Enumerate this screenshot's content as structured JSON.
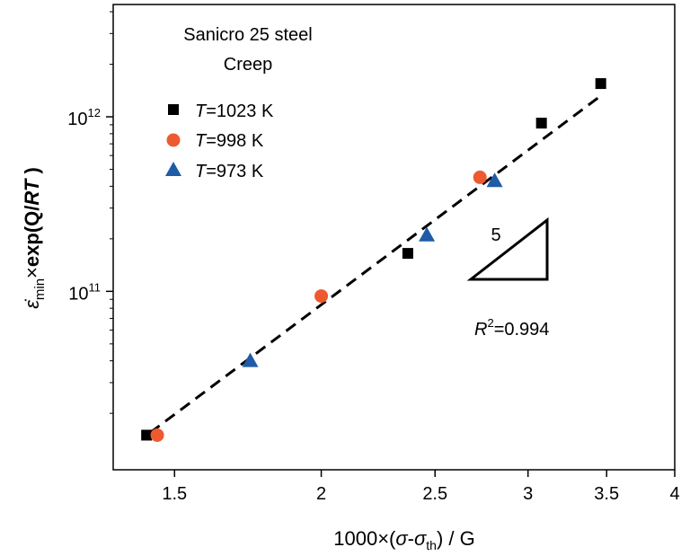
{
  "chart_data": {
    "type": "scatter",
    "title_lines": [
      "Sanicro 25 steel",
      "Creep"
    ],
    "x_scale": "log",
    "y_scale": "log",
    "xlim": [
      1.33,
      4.0
    ],
    "ylim": [
      9500000000.0,
      4400000000000.0
    ],
    "grid": false,
    "legend_position": "top-left",
    "xlabel": {
      "prefix": "1000×(",
      "sigma": "σ",
      "dash": "-",
      "sigma2": "σ",
      "sub": "th",
      "suffix": ") / G"
    },
    "ylabel": {
      "sub": "min",
      "times": "×",
      "exp": "exp(Q/",
      "rt": "RT",
      "close": " )"
    },
    "x_ticks": [
      {
        "value": 1.5,
        "label": "1.5"
      },
      {
        "value": 2.0,
        "label": "2"
      },
      {
        "value": 2.5,
        "label": "2.5"
      },
      {
        "value": 3.0,
        "label": "3"
      },
      {
        "value": 3.5,
        "label": "3.5"
      },
      {
        "value": 4.0,
        "label": "4"
      }
    ],
    "y_ticks": [
      {
        "value": 100000000000.0,
        "base": "10",
        "exp": "11"
      },
      {
        "value": 1000000000000.0,
        "base": "10",
        "exp": "12"
      }
    ],
    "series": [
      {
        "name": "=1023 K",
        "name_italic": "T",
        "marker": "square",
        "color": "#000000",
        "x": [
          1.42,
          2.37,
          3.08,
          3.46
        ],
        "y": [
          15000000000.0,
          165000000000.0,
          920000000000.0,
          1550000000000.0
        ]
      },
      {
        "name": "=998 K",
        "name_italic": "T",
        "marker": "circle",
        "color": "#EE5A2F",
        "x": [
          1.45,
          2.0,
          2.73
        ],
        "y": [
          15000000000.0,
          94000000000.0,
          450000000000.0
        ]
      },
      {
        "name": "=973 K",
        "name_italic": "T",
        "marker": "triangle",
        "color": "#1F5BA6",
        "x": [
          1.74,
          2.46,
          2.81
        ],
        "y": [
          40000000000.0,
          210000000000.0,
          430000000000.0
        ]
      }
    ],
    "fit_line": {
      "style": "dashed",
      "color": "#000000",
      "x": [
        1.43,
        3.45
      ],
      "y": [
        15500000000.0,
        1300000000000.0
      ]
    },
    "slope_label": "5",
    "r2": {
      "italic": "R",
      "sup": "2",
      "value": "=0.994"
    }
  }
}
